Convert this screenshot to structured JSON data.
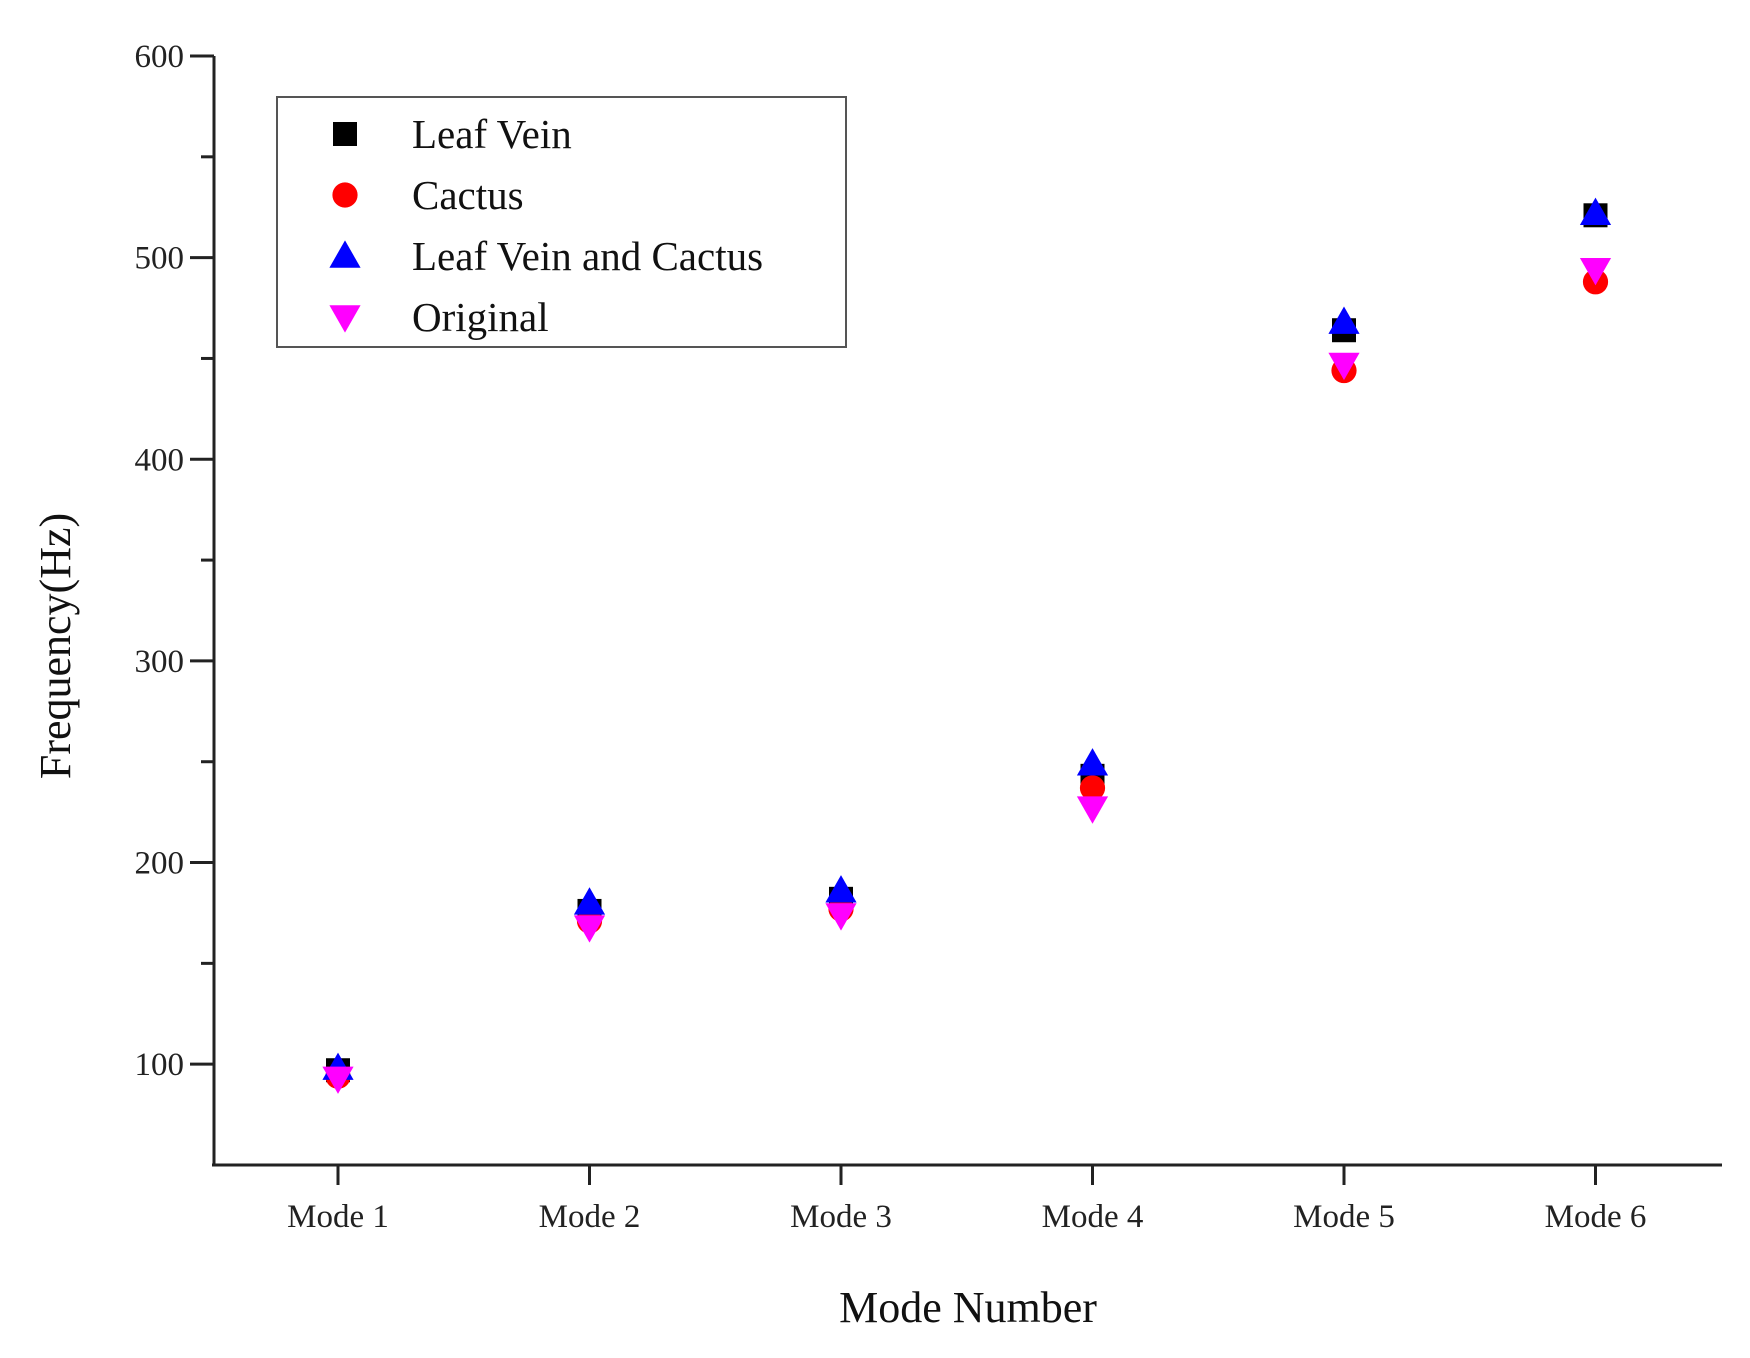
{
  "chart_data": {
    "type": "scatter",
    "title": "",
    "xlabel": "Mode Number",
    "ylabel": "Frequency(Hz)",
    "categories": [
      "Mode 1",
      "Mode 2",
      "Mode 3",
      "Mode 4",
      "Mode 5",
      "Mode 6"
    ],
    "ylim": [
      50,
      600
    ],
    "yticks": [
      "100",
      "200",
      "300",
      "400",
      "500",
      "600"
    ],
    "grid": false,
    "legend_position": "top-left",
    "series": [
      {
        "name": "Leaf Vein",
        "marker": "square",
        "color": "#000000",
        "values": [
          97,
          176,
          182,
          243,
          464,
          521
        ]
      },
      {
        "name": "Cactus",
        "marker": "circle",
        "color": "#ff0000",
        "values": [
          94,
          171,
          177,
          237,
          444,
          488
        ]
      },
      {
        "name": "Leaf Vein and Cactus",
        "marker": "triangle-up",
        "color": "#0000ff",
        "values": [
          98,
          180,
          186,
          249,
          468,
          522
        ]
      },
      {
        "name": "Original",
        "marker": "triangle-down",
        "color": "#ff00ff",
        "values": [
          93,
          168,
          174,
          227,
          447,
          494
        ]
      }
    ]
  }
}
